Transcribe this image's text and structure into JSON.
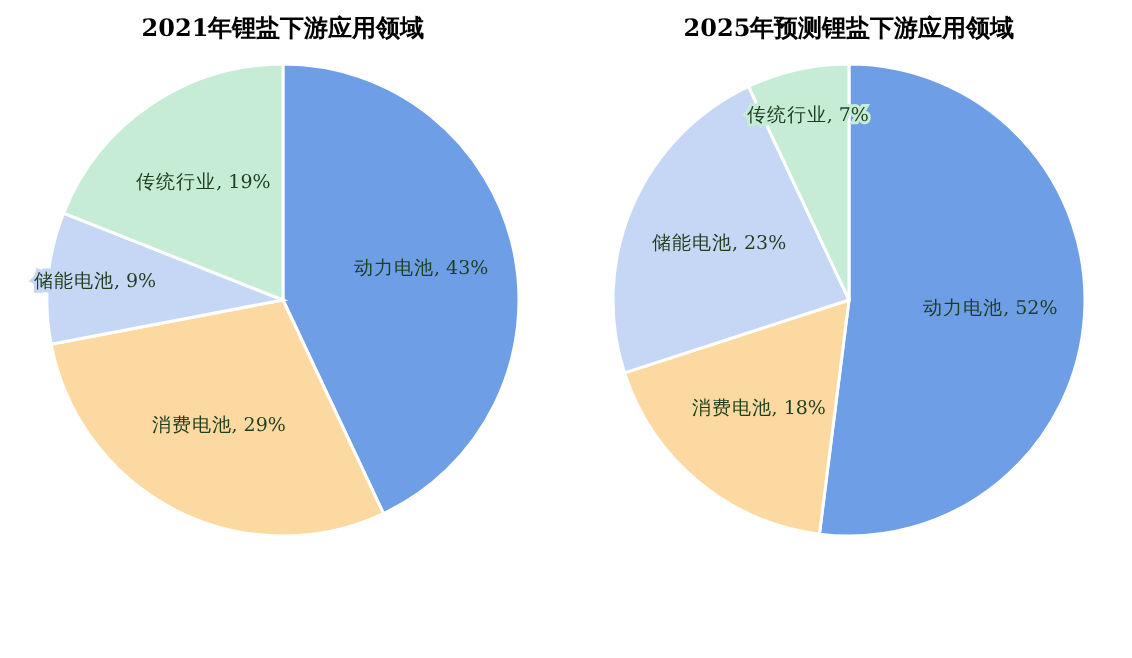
{
  "chart_data": [
    {
      "type": "pie",
      "title": "2021年锂盐下游应用领域",
      "categories": [
        "动力电池",
        "消费电池",
        "储能电池",
        "传统行业"
      ],
      "values": [
        43,
        29,
        9,
        19
      ],
      "value_labels": [
        "43%",
        "29%",
        "9%",
        "19%"
      ],
      "colors": [
        "#6d9ee6",
        "#fdd9a2",
        "#c6d7f5",
        "#c6ecd5"
      ]
    },
    {
      "type": "pie",
      "title": "2025年预测锂盐下游应用领域",
      "categories": [
        "动力电池",
        "消费电池",
        "储能电池",
        "传统行业"
      ],
      "values": [
        52,
        18,
        23,
        7
      ],
      "value_labels": [
        "52%",
        "18%",
        "23%",
        "7%"
      ],
      "colors": [
        "#6d9ee6",
        "#fdd9a2",
        "#c6d7f5",
        "#c6ecd5"
      ]
    }
  ]
}
